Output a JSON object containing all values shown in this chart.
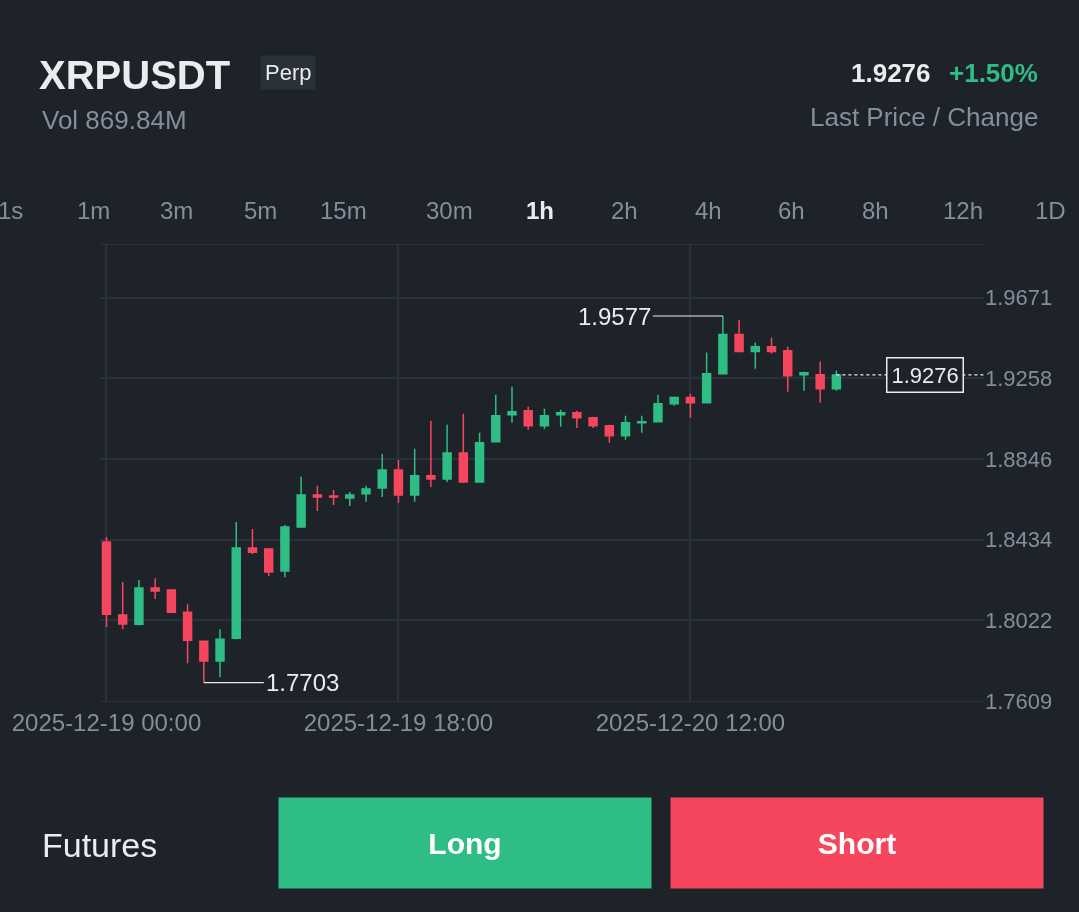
{
  "chart_data": {
    "type": "candlestick",
    "title": "XRPUSDT",
    "x": [
      "2025-12-19T00:00",
      "2025-12-19T01:00",
      "2025-12-19T02:00",
      "2025-12-19T03:00",
      "2025-12-19T04:00",
      "2025-12-19T05:00",
      "2025-12-19T06:00",
      "2025-12-19T07:00",
      "2025-12-19T08:00",
      "2025-12-19T09:00",
      "2025-12-19T10:00",
      "2025-12-19T11:00",
      "2025-12-19T12:00",
      "2025-12-19T13:00",
      "2025-12-19T14:00",
      "2025-12-19T15:00",
      "2025-12-19T16:00",
      "2025-12-19T17:00",
      "2025-12-19T18:00",
      "2025-12-19T19:00",
      "2025-12-19T20:00",
      "2025-12-19T21:00",
      "2025-12-19T22:00",
      "2025-12-19T23:00",
      "2025-12-20T00:00",
      "2025-12-20T01:00",
      "2025-12-20T02:00",
      "2025-12-20T03:00",
      "2025-12-20T04:00",
      "2025-12-20T05:00",
      "2025-12-20T06:00",
      "2025-12-20T07:00",
      "2025-12-20T08:00",
      "2025-12-20T09:00",
      "2025-12-20T10:00",
      "2025-12-20T11:00",
      "2025-12-20T12:00",
      "2025-12-20T13:00",
      "2025-12-20T14:00",
      "2025-12-20T15:00",
      "2025-12-20T16:00",
      "2025-12-20T17:00",
      "2025-12-20T18:00",
      "2025-12-20T19:00",
      "2025-12-20T20:00",
      "2025-12-20T21:00"
    ],
    "ohlc": [
      [
        1.8422,
        1.8447,
        1.7987,
        1.8053
      ],
      [
        1.8048,
        1.8217,
        1.7976,
        1.8002
      ],
      [
        1.8001,
        1.8227,
        1.7995,
        1.8186
      ],
      [
        1.8186,
        1.8237,
        1.813,
        1.8171
      ],
      [
        1.8176,
        1.8176,
        1.8058,
        1.8063
      ],
      [
        1.8063,
        1.8104,
        1.7802,
        1.792
      ],
      [
        1.7915,
        1.7915,
        1.7703,
        1.7813
      ],
      [
        1.7813,
        1.7976,
        1.773,
        1.7925
      ],
      [
        1.793,
        1.8524,
        1.7925,
        1.8391
      ],
      [
        1.8391,
        1.8488,
        1.836,
        1.837
      ],
      [
        1.8386,
        1.8391,
        1.8248,
        1.8268
      ],
      [
        1.8273,
        1.8509,
        1.8242,
        1.8498
      ],
      [
        1.8498,
        1.8755,
        1.8498,
        1.8662
      ],
      [
        1.8662,
        1.8709,
        1.858,
        1.8652
      ],
      [
        1.8657,
        1.8688,
        1.8611,
        1.8652
      ],
      [
        1.8647,
        1.8678,
        1.8606,
        1.8662
      ],
      [
        1.8668,
        1.8709,
        1.8627,
        1.8693
      ],
      [
        1.8698,
        1.8872,
        1.8652,
        1.879
      ],
      [
        1.879,
        1.8841,
        1.8621,
        1.8662
      ],
      [
        1.8662,
        1.8898,
        1.8627,
        1.876
      ],
      [
        1.876,
        1.9041,
        1.8703,
        1.8744
      ],
      [
        1.8744,
        1.9021,
        1.8729,
        1.8877
      ],
      [
        1.8877,
        1.9077,
        1.8724,
        1.8729
      ],
      [
        1.8729,
        1.898,
        1.8729,
        1.8929
      ],
      [
        1.8934,
        1.9175,
        1.8934,
        1.9067
      ],
      [
        1.9072,
        1.9215,
        1.9031,
        1.9088
      ],
      [
        1.9093,
        1.9113,
        1.8995,
        1.9016
      ],
      [
        1.9016,
        1.9103,
        1.9,
        1.9067
      ],
      [
        1.9072,
        1.9098,
        1.9011,
        1.9082
      ],
      [
        1.9083,
        1.9093,
        1.9005,
        1.9057
      ],
      [
        1.9057,
        1.9062,
        1.9005,
        1.9016
      ],
      [
        1.9016,
        1.9021,
        1.8929,
        1.8965
      ],
      [
        1.8965,
        1.9067,
        1.8944,
        1.9031
      ],
      [
        1.9031,
        1.9067,
        1.898,
        1.9036
      ],
      [
        1.9036,
        1.9175,
        1.9036,
        1.9129
      ],
      [
        1.9129,
        1.916,
        1.9118,
        1.916
      ],
      [
        1.916,
        1.918,
        1.9057,
        1.9134
      ],
      [
        1.9134,
        1.939,
        1.9134,
        1.9282
      ],
      [
        1.9282,
        1.9577,
        1.9282,
        1.9482
      ],
      [
        1.9482,
        1.9558,
        1.939,
        1.9395
      ],
      [
        1.9395,
        1.9441,
        1.9308,
        1.942
      ],
      [
        1.942,
        1.9466,
        1.9385,
        1.9395
      ],
      [
        1.94,
        1.942,
        1.919,
        1.9272
      ],
      [
        1.9277,
        1.9292,
        1.9195,
        1.9287
      ],
      [
        1.9277,
        1.9344,
        1.9134,
        1.9205
      ],
      [
        1.9205,
        1.9297,
        1.9195,
        1.9276
      ]
    ],
    "xlim": [
      "2025-12-18T23:36",
      "2025-12-21T06:06"
    ],
    "xticks": [
      {
        "value": "2025-12-19T00:00",
        "label": "2025-12-19 00:00"
      },
      {
        "value": "2025-12-19T18:00",
        "label": "2025-12-19 18:00"
      },
      {
        "value": "2025-12-20T12:00",
        "label": "2025-12-20 12:00"
      }
    ],
    "ylim": [
      1.7609,
      1.994
    ],
    "yticks": [
      1.7609,
      1.8022,
      1.8434,
      1.8846,
      1.9258,
      1.9671
    ],
    "grid": true,
    "ref_lines": [
      {
        "axis": "y",
        "value": 1.9276,
        "label": "1.9276",
        "line_style": "dotted"
      }
    ],
    "annotations": [
      "Perp",
      "Vol 869.84M",
      "1.9276",
      "+1.50%",
      "Last Price / Change",
      "1s",
      "1m",
      "3m",
      "5m",
      "15m",
      "30m",
      "1h",
      "2h",
      "4h",
      "6h",
      "8h",
      "12h",
      "1D",
      "Futures",
      "Long",
      "Short",
      {
        "text": "1.9577",
        "x": "2025-12-20T14:00",
        "y": 1.9577
      },
      {
        "text": "1.7703",
        "x": "2025-12-19T06:00",
        "y": 1.7703
      }
    ]
  }
}
